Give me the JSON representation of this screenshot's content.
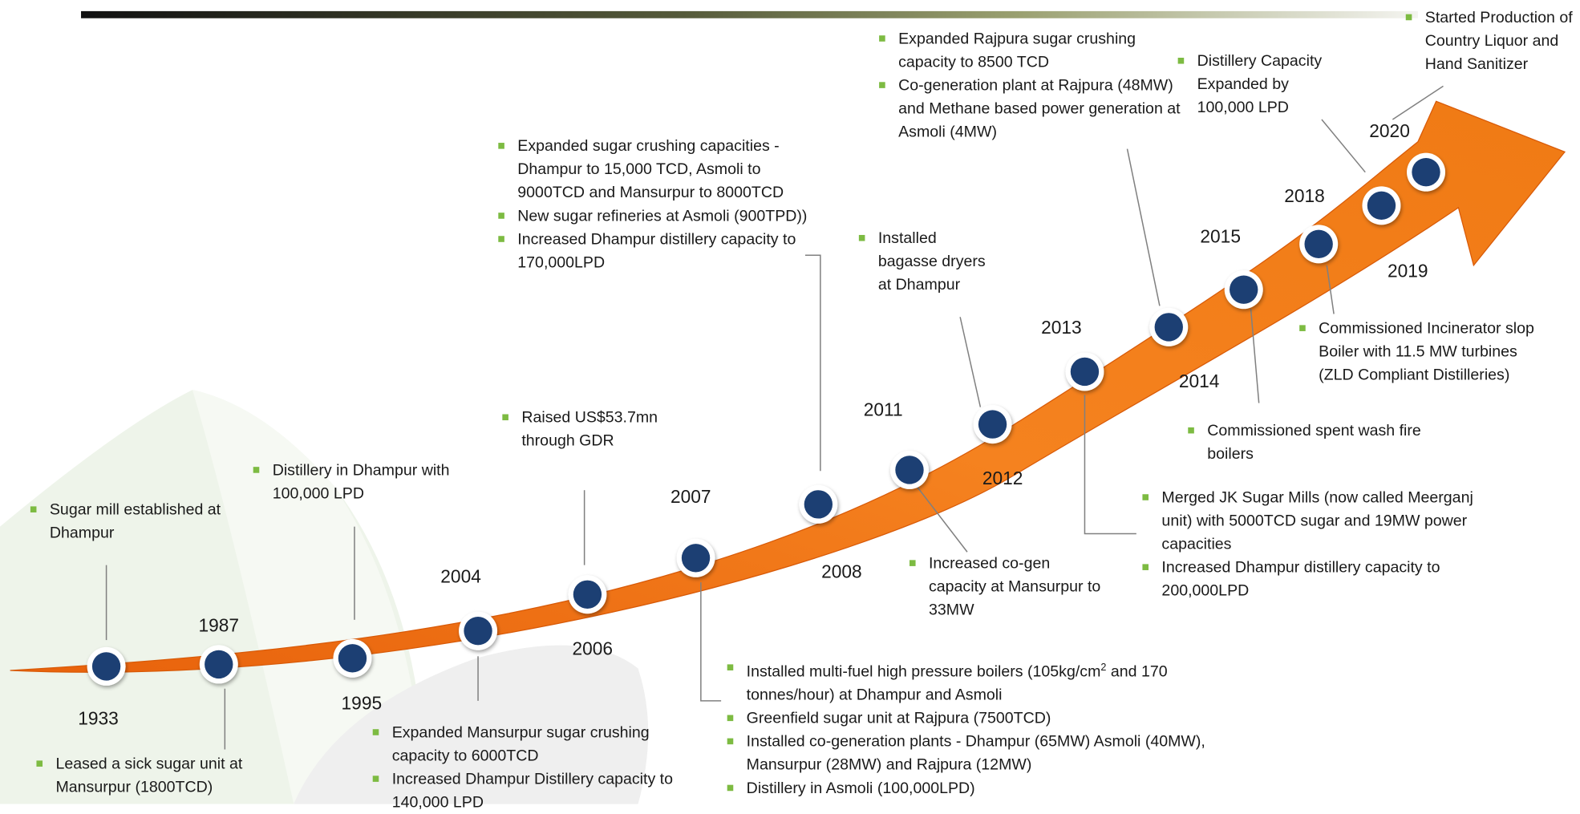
{
  "events": [
    {
      "year": "1933",
      "bullets": [
        "Sugar mill established at Dhampur"
      ]
    },
    {
      "year": "1987",
      "bullets": [
        "Leased a sick sugar unit at Mansurpur (1800TCD)"
      ]
    },
    {
      "year": "1995",
      "bullets": [
        "Distillery in Dhampur with 100,000 LPD"
      ]
    },
    {
      "year": "2004",
      "bullets": [
        "Expanded Mansurpur sugar crushing capacity to 6000TCD",
        "Increased Dhampur Distillery capacity to 140,000 LPD"
      ]
    },
    {
      "year": "2006",
      "bullets": [
        "Raised US$53.7mn through GDR"
      ]
    },
    {
      "year": "2007",
      "bullets": [
        {
          "text": "Installed multi-fuel high pressure boilers (105kg/cm",
          "sup": "2",
          "tail": " and 170 tonnes/hour) at Dhampur and Asmoli"
        },
        "Greenfield sugar unit at Rajpura (7500TCD)",
        "Installed co-generation plants - Dhampur (65MW) Asmoli (40MW), Mansurpur (28MW) and Rajpura (12MW)",
        "Distillery in Asmoli (100,000LPD)"
      ]
    },
    {
      "year": "2008",
      "bullets": [
        "Expanded sugar crushing capacities - Dhampur to 15,000 TCD, Asmoli to 9000TCD and Mansurpur to 8000TCD",
        "New sugar refineries at Asmoli (900TPD))",
        "Increased Dhampur distillery capacity to 170,000LPD"
      ]
    },
    {
      "year": "2011",
      "bullets": [
        "Increased co-gen capacity at Mansurpur to 33MW"
      ]
    },
    {
      "year": "2012",
      "bullets": [
        "Installed bagasse dryers at Dhampur"
      ]
    },
    {
      "year": "2013",
      "bullets": [
        "Merged JK Sugar Mills (now called Meerganj unit) with 5000TCD sugar and 19MW power capacities",
        "Increased Dhampur distillery capacity to 200,000LPD"
      ]
    },
    {
      "year": "2014",
      "bullets": [
        "Expanded Rajpura sugar crushing capacity to 8500 TCD",
        "Co-generation plant at Rajpura (48MW) and Methane based power generation at Asmoli (4MW)"
      ]
    },
    {
      "year": "2015",
      "bullets": [
        "Commissioned spent wash fire boilers"
      ]
    },
    {
      "year": "2018",
      "bullets": [
        "Commissioned Incinerator slop Boiler with 11.5 MW turbines (ZLD Compliant Distilleries)"
      ]
    },
    {
      "year": "2019",
      "bullets": [
        "Distillery Capacity Expanded by 100,000 LPD"
      ]
    },
    {
      "year": "2020",
      "bullets": [
        "Started Production of Country Liquor and Hand Sanitizer"
      ]
    }
  ]
}
